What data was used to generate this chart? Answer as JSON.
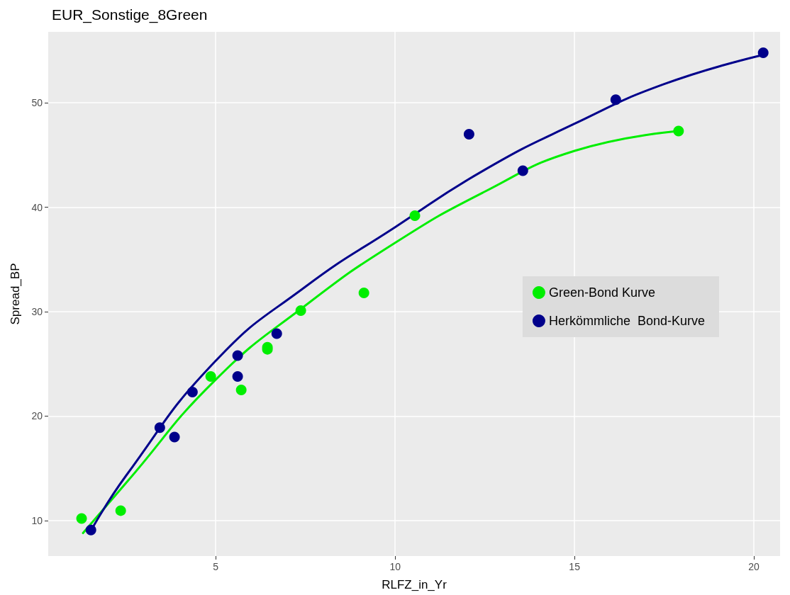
{
  "chart_data": {
    "type": "scatter",
    "title": "EUR_Sonstige_8Green",
    "xlabel": "RLFZ_in_Yr",
    "ylabel": "Spread_BP",
    "xlim": [
      0.33,
      20.73
    ],
    "xticks": [
      5,
      10,
      15,
      20
    ],
    "ylim": [
      6.6,
      56.8
    ],
    "yticks": [
      10,
      20,
      30,
      40,
      50
    ],
    "grid": true,
    "legend": "right",
    "marker": "circle",
    "series": [
      {
        "name": "Green-Bond Kurve",
        "color": "#00ee00",
        "x": [
          1.26,
          2.35,
          4.86,
          5.71,
          6.44,
          6.44,
          7.37,
          9.13,
          10.55,
          17.9
        ],
        "values": [
          10.2,
          10.95,
          23.8,
          22.5,
          26.4,
          26.6,
          30.1,
          31.8,
          39.2,
          47.3
        ]
      },
      {
        "name": "Herkömmliche  Bond-Kurve",
        "color": "#00008b",
        "x": [
          1.52,
          3.44,
          3.85,
          4.35,
          5.61,
          5.61,
          6.7,
          12.06,
          13.56,
          16.15,
          20.26
        ],
        "values": [
          9.1,
          18.9,
          18.0,
          22.3,
          25.8,
          23.8,
          27.9,
          47.0,
          43.5,
          50.3,
          54.8
        ]
      },
      {
        "type": "line",
        "marker": "none",
        "color": "#00ee00",
        "x": [
          1.3,
          2.5,
          5,
          7.5,
          10,
          12.5,
          15,
          17.9
        ],
        "values": [
          8.8,
          13.6,
          23.5,
          30.6,
          36.6,
          41.5,
          45.4,
          47.3
        ]
      },
      {
        "type": "line",
        "marker": "none",
        "color": "#00008b",
        "x": [
          1.5,
          2.5,
          5,
          7.5,
          10,
          12.5,
          15,
          17.5,
          20.26
        ],
        "values": [
          8.9,
          14.3,
          25.3,
          32.4,
          38.1,
          43.6,
          48.0,
          51.8,
          54.6
        ]
      }
    ]
  }
}
